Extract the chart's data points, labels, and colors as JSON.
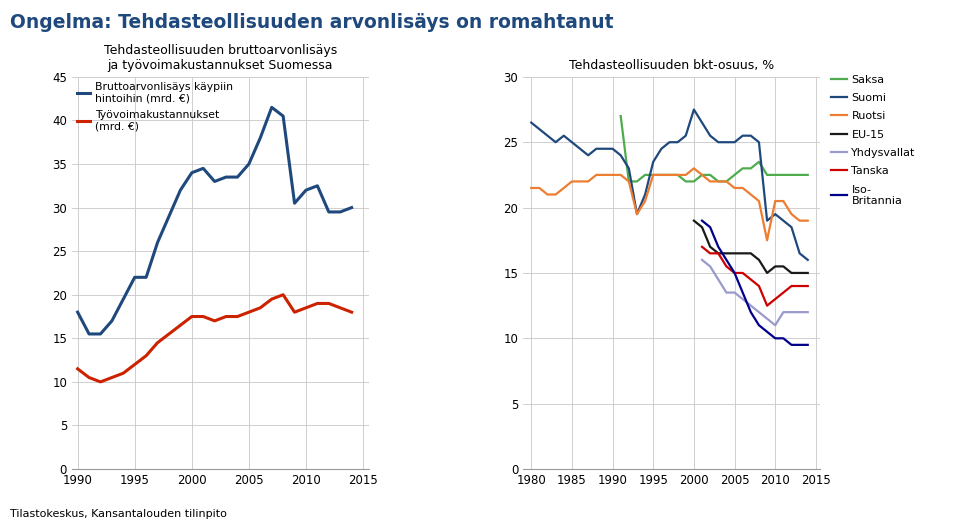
{
  "title": "Ongelma: Tehdasteollisuuden arvonlisäys on romahtanut",
  "title_color": "#1F497D",
  "subtitle_left": "Tehdasteollisuuden bruttoarvonlisäys\nja työvoimakustannukset Suomessa",
  "subtitle_right": "Tehdasteollisuuden bkt-osuus, %",
  "source_text": "Tilastokeskus, Kansantalouden tilinpito",
  "left_years": [
    1990,
    1991,
    1992,
    1993,
    1994,
    1995,
    1996,
    1997,
    1998,
    1999,
    2000,
    2001,
    2002,
    2003,
    2004,
    2005,
    2006,
    2007,
    2008,
    2009,
    2010,
    2011,
    2012,
    2013,
    2014
  ],
  "blue_line": [
    18.0,
    15.5,
    15.5,
    17.0,
    19.5,
    22.0,
    22.0,
    26.0,
    29.0,
    32.0,
    34.0,
    34.5,
    33.0,
    33.5,
    33.5,
    35.0,
    38.0,
    41.5,
    40.5,
    30.5,
    32.0,
    32.5,
    29.5,
    29.5,
    30.0
  ],
  "red_line": [
    11.5,
    10.5,
    10.0,
    10.5,
    11.0,
    12.0,
    13.0,
    14.5,
    15.5,
    16.5,
    17.5,
    17.5,
    17.0,
    17.5,
    17.5,
    18.0,
    18.5,
    19.5,
    20.0,
    18.0,
    18.5,
    19.0,
    19.0,
    18.5,
    18.0
  ],
  "left_ylim": [
    0,
    45
  ],
  "left_yticks": [
    0,
    5,
    10,
    15,
    20,
    25,
    30,
    35,
    40,
    45
  ],
  "left_xticks": [
    1990,
    1995,
    2000,
    2005,
    2010,
    2015
  ],
  "blue_label": "Bruttoarvonlisäys käypiin\nhintoihin (mrd. €)",
  "red_label": "Työvoimakustannukset\n(mrd. €)",
  "right_years_suomi": [
    1980,
    1981,
    1982,
    1983,
    1984,
    1985,
    1986,
    1987,
    1988,
    1989,
    1990,
    1991,
    1992,
    1993,
    1994,
    1995,
    1996,
    1997,
    1998,
    1999,
    2000,
    2001,
    2002,
    2003,
    2004,
    2005,
    2006,
    2007,
    2008,
    2009,
    2010,
    2011,
    2012,
    2013,
    2014
  ],
  "suomi": [
    26.5,
    26.0,
    25.5,
    25.0,
    25.5,
    25.0,
    24.5,
    24.0,
    24.5,
    24.5,
    24.5,
    24.0,
    23.0,
    19.5,
    21.0,
    23.5,
    24.5,
    25.0,
    25.0,
    25.5,
    27.5,
    26.5,
    25.5,
    25.0,
    25.0,
    25.0,
    25.5,
    25.5,
    25.0,
    19.0,
    19.5,
    19.0,
    18.5,
    16.5,
    16.0
  ],
  "right_years_saksa": [
    1980,
    1981,
    1982,
    1983,
    1984,
    1985,
    1986,
    1987,
    1988,
    1989,
    1990,
    1991,
    1992,
    1993,
    1994,
    1995,
    1996,
    1997,
    1998,
    1999,
    2000,
    2001,
    2002,
    2003,
    2004,
    2005,
    2006,
    2007,
    2008,
    2009,
    2010,
    2011,
    2012,
    2013,
    2014
  ],
  "saksa": [
    null,
    null,
    null,
    null,
    null,
    null,
    null,
    null,
    null,
    null,
    null,
    27.0,
    22.0,
    22.0,
    22.5,
    22.5,
    22.5,
    22.5,
    22.5,
    22.0,
    22.0,
    22.5,
    22.5,
    22.0,
    22.0,
    22.5,
    23.0,
    23.0,
    23.5,
    22.5,
    22.5,
    22.5,
    22.5,
    22.5,
    22.5
  ],
  "right_years_ruotsi": [
    1980,
    1981,
    1982,
    1983,
    1984,
    1985,
    1986,
    1987,
    1988,
    1989,
    1990,
    1991,
    1992,
    1993,
    1994,
    1995,
    1996,
    1997,
    1998,
    1999,
    2000,
    2001,
    2002,
    2003,
    2004,
    2005,
    2006,
    2007,
    2008,
    2009,
    2010,
    2011,
    2012,
    2013,
    2014
  ],
  "ruotsi": [
    21.5,
    21.5,
    21.0,
    21.0,
    21.5,
    22.0,
    22.0,
    22.0,
    22.5,
    22.5,
    22.5,
    22.5,
    22.0,
    19.5,
    20.5,
    22.5,
    22.5,
    22.5,
    22.5,
    22.5,
    23.0,
    22.5,
    22.0,
    22.0,
    22.0,
    21.5,
    21.5,
    21.0,
    20.5,
    17.5,
    20.5,
    20.5,
    19.5,
    19.0,
    19.0
  ],
  "right_years_eu15": [
    2000,
    2001,
    2002,
    2003,
    2004,
    2005,
    2006,
    2007,
    2008,
    2009,
    2010,
    2011,
    2012,
    2013,
    2014
  ],
  "eu15": [
    19.0,
    18.5,
    17.0,
    16.5,
    16.5,
    16.5,
    16.5,
    16.5,
    16.0,
    15.0,
    15.5,
    15.5,
    15.0,
    15.0,
    15.0
  ],
  "right_years_yhdysvallat": [
    2001,
    2002,
    2003,
    2004,
    2005,
    2006,
    2007,
    2008,
    2009,
    2010,
    2011,
    2012,
    2013,
    2014
  ],
  "yhdysvallat": [
    16.0,
    15.5,
    14.5,
    13.5,
    13.5,
    13.0,
    12.5,
    12.0,
    11.5,
    11.0,
    12.0,
    12.0,
    12.0,
    12.0
  ],
  "right_years_tanska": [
    2001,
    2002,
    2003,
    2004,
    2005,
    2006,
    2007,
    2008,
    2009,
    2010,
    2011,
    2012,
    2013,
    2014
  ],
  "tanska": [
    17.0,
    16.5,
    16.5,
    15.5,
    15.0,
    15.0,
    14.5,
    14.0,
    12.5,
    13.0,
    13.5,
    14.0,
    14.0,
    14.0
  ],
  "right_years_iso": [
    2001,
    2002,
    2003,
    2004,
    2005,
    2006,
    2007,
    2008,
    2009,
    2010,
    2011,
    2012,
    2013,
    2014
  ],
  "iso_britannia": [
    19.0,
    18.5,
    17.0,
    16.0,
    15.0,
    13.5,
    12.0,
    11.0,
    10.5,
    10.0,
    10.0,
    9.5,
    9.5,
    9.5
  ],
  "right_ylim": [
    0,
    30
  ],
  "right_yticks": [
    0,
    5,
    10,
    15,
    20,
    25,
    30
  ],
  "right_xticks": [
    1980,
    1985,
    1990,
    1995,
    2000,
    2005,
    2010,
    2015
  ],
  "color_saksa": "#4EAC4E",
  "color_suomi": "#1F497D",
  "color_ruotsi": "#ED7D31",
  "color_eu15": "#1A1A1A",
  "color_yhdysvallat": "#9999CC",
  "color_tanska": "#CC0000",
  "color_iso": "#00008B",
  "color_blue_line": "#1F497D",
  "color_red_line": "#CC2200",
  "background_color": "#FFFFFF",
  "grid_color": "#C8C8C8"
}
